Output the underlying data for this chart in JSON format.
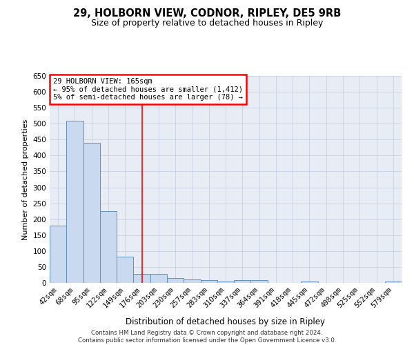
{
  "title1": "29, HOLBORN VIEW, CODNOR, RIPLEY, DE5 9RB",
  "title2": "Size of property relative to detached houses in Ripley",
  "xlabel": "Distribution of detached houses by size in Ripley",
  "ylabel": "Number of detached properties",
  "categories": [
    "42sqm",
    "68sqm",
    "95sqm",
    "122sqm",
    "149sqm",
    "176sqm",
    "203sqm",
    "230sqm",
    "257sqm",
    "283sqm",
    "310sqm",
    "337sqm",
    "364sqm",
    "391sqm",
    "418sqm",
    "445sqm",
    "472sqm",
    "498sqm",
    "525sqm",
    "552sqm",
    "579sqm"
  ],
  "values": [
    180,
    510,
    440,
    225,
    83,
    28,
    28,
    15,
    10,
    8,
    5,
    8,
    8,
    0,
    0,
    5,
    0,
    0,
    0,
    0,
    5
  ],
  "bar_color": "#c9d9ef",
  "bar_edge_color": "#6090c0",
  "red_line_index": 5,
  "annotation_title": "29 HOLBORN VIEW: 165sqm",
  "annotation_line1": "← 95% of detached houses are smaller (1,412)",
  "annotation_line2": "5% of semi-detached houses are larger (78) →",
  "footer1": "Contains HM Land Registry data © Crown copyright and database right 2024.",
  "footer2": "Contains public sector information licensed under the Open Government Licence v3.0.",
  "ylim": [
    0,
    650
  ],
  "yticks": [
    0,
    50,
    100,
    150,
    200,
    250,
    300,
    350,
    400,
    450,
    500,
    550,
    600,
    650
  ],
  "bg_color": "#ffffff",
  "plot_bg_color": "#e8edf5",
  "grid_color": "#c8d0e0"
}
